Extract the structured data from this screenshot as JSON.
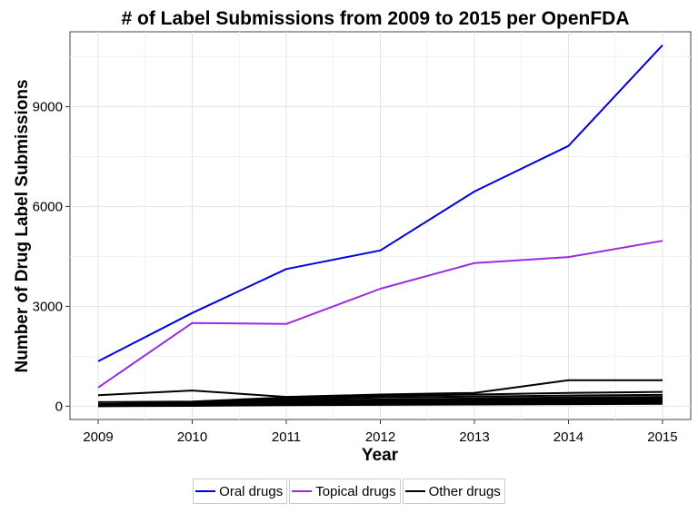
{
  "chart_data": {
    "type": "line",
    "title": "# of Label Submissions from 2009 to 2015 per OpenFDA",
    "xlabel": "Year",
    "ylabel": "Number of Drug Label Submissions",
    "x": [
      2009,
      2010,
      2011,
      2012,
      2013,
      2014,
      2015
    ],
    "xlim": [
      2008.7,
      2015.3
    ],
    "ylim": [
      -400,
      11250
    ],
    "x_ticks": [
      "2009",
      "2010",
      "2011",
      "2012",
      "2013",
      "2014",
      "2015"
    ],
    "y_ticks": [
      0,
      3000,
      6000,
      9000
    ],
    "y_tick_labels": [
      "0",
      "3000",
      "6000",
      "9000"
    ],
    "grid": true,
    "legend_position": "bottom",
    "series": [
      {
        "name": "Oral drugs",
        "group": "Oral drugs",
        "color": "#0000dd",
        "values": [
          1350,
          2800,
          4120,
          4680,
          6450,
          7820,
          10850
        ]
      },
      {
        "name": "Topical drugs",
        "group": "Topical drugs",
        "color": "#9a2be2",
        "values": [
          560,
          2500,
          2470,
          3530,
          4300,
          4480,
          4970
        ]
      },
      {
        "group": "Other drugs",
        "color": "#000000",
        "values": [
          330,
          470,
          280,
          350,
          400,
          780,
          780
        ]
      },
      {
        "group": "Other drugs",
        "color": "#000000",
        "values": [
          120,
          140,
          260,
          310,
          350,
          400,
          430
        ]
      },
      {
        "group": "Other drugs",
        "color": "#000000",
        "values": [
          60,
          110,
          220,
          260,
          290,
          320,
          340
        ]
      },
      {
        "group": "Other drugs",
        "color": "#000000",
        "values": [
          30,
          90,
          180,
          200,
          230,
          260,
          280
        ]
      },
      {
        "group": "Other drugs",
        "color": "#000000",
        "values": [
          20,
          70,
          150,
          170,
          190,
          210,
          230
        ]
      },
      {
        "group": "Other drugs",
        "color": "#000000",
        "values": [
          10,
          50,
          120,
          140,
          160,
          170,
          190
        ]
      },
      {
        "group": "Other drugs",
        "color": "#000000",
        "values": [
          5,
          40,
          90,
          110,
          120,
          130,
          150
        ]
      },
      {
        "group": "Other drugs",
        "color": "#000000",
        "values": [
          0,
          20,
          50,
          70,
          80,
          90,
          110
        ]
      },
      {
        "group": "Other drugs",
        "color": "#000000",
        "values": [
          0,
          10,
          30,
          40,
          50,
          60,
          70
        ]
      }
    ],
    "legend": [
      {
        "label": "Oral drugs",
        "color": "#0000dd"
      },
      {
        "label": "Topical drugs",
        "color": "#9a2be2"
      },
      {
        "label": "Other drugs",
        "color": "#000000"
      }
    ]
  }
}
